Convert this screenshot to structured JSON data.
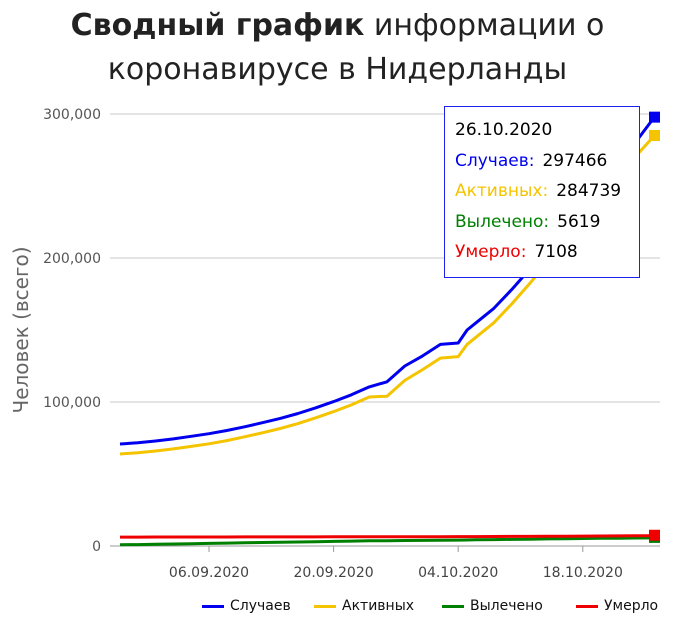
{
  "title": {
    "bold": "Сводный график",
    "line1_rest": "информации о",
    "line2": "коронавирусе в Нидерланды"
  },
  "tooltip": {
    "date": "26.10.2020",
    "rows": [
      {
        "label": "Случаев:",
        "value": "297466",
        "color": "#0000ee"
      },
      {
        "label": "Активных:",
        "value": "284739",
        "color": "#f5c400"
      },
      {
        "label": "Вылечено:",
        "value": "5619",
        "color": "#008000"
      },
      {
        "label": "Умерло:",
        "value": "7108",
        "color": "#ee0000"
      }
    ]
  },
  "chart_data": {
    "type": "line",
    "ylabel": "Человек (всего)",
    "ylim": [
      0,
      300000
    ],
    "yticks": [
      "0",
      "100,000",
      "200,000",
      "300,000"
    ],
    "xticks": [
      "06.09.2020",
      "20.09.2020",
      "04.10.2020",
      "18.10.2020"
    ],
    "x": [
      "2020-08-27",
      "2020-08-29",
      "2020-08-31",
      "2020-09-02",
      "2020-09-04",
      "2020-09-06",
      "2020-09-08",
      "2020-09-10",
      "2020-09-12",
      "2020-09-14",
      "2020-09-16",
      "2020-09-18",
      "2020-09-20",
      "2020-09-22",
      "2020-09-24",
      "2020-09-26",
      "2020-09-28",
      "2020-09-30",
      "2020-10-02",
      "2020-10-04",
      "2020-10-05",
      "2020-10-06",
      "2020-10-08",
      "2020-10-10",
      "2020-10-12",
      "2020-10-14",
      "2020-10-16",
      "2020-10-18",
      "2020-10-20",
      "2020-10-22",
      "2020-10-24",
      "2020-10-26"
    ],
    "series": [
      {
        "name": "Случаев",
        "color": "#0000ee",
        "values": [
          70800,
          71700,
          72900,
          74400,
          76200,
          78000,
          80200,
          82800,
          85600,
          88600,
          92000,
          96000,
          100300,
          105000,
          110500,
          114000,
          125000,
          132000,
          140000,
          141000,
          150000,
          155000,
          165000,
          178000,
          192000,
          207000,
          223000,
          238000,
          252000,
          266000,
          281000,
          297466
        ]
      },
      {
        "name": "Активных",
        "color": "#f5c400",
        "values": [
          63900,
          64800,
          66000,
          67400,
          69200,
          71000,
          73200,
          75800,
          78600,
          81600,
          85000,
          89000,
          93300,
          98000,
          103500,
          104000,
          115000,
          122500,
          130500,
          131500,
          140000,
          145000,
          155000,
          168000,
          182000,
          197000,
          213000,
          228000,
          242000,
          256000,
          271000,
          284739
        ]
      },
      {
        "name": "Вылечено",
        "color": "#008000",
        "values": [
          900,
          1000,
          1200,
          1400,
          1600,
          1800,
          2000,
          2200,
          2400,
          2600,
          2800,
          3000,
          3200,
          3400,
          3600,
          3700,
          3800,
          3900,
          4000,
          4100,
          4200,
          4300,
          4450,
          4600,
          4750,
          4900,
          5050,
          5200,
          5330,
          5440,
          5530,
          5619
        ]
      },
      {
        "name": "Умерло",
        "color": "#ee0000",
        "values": [
          6200,
          6210,
          6220,
          6230,
          6245,
          6260,
          6275,
          6290,
          6305,
          6320,
          6335,
          6350,
          6370,
          6390,
          6410,
          6430,
          6450,
          6470,
          6490,
          6510,
          6530,
          6560,
          6600,
          6650,
          6700,
          6760,
          6820,
          6880,
          6940,
          7000,
          7050,
          7108
        ]
      }
    ],
    "legend_position": "bottom",
    "grid": true
  },
  "legend": [
    {
      "label": "Случаев",
      "color": "#0000ee"
    },
    {
      "label": "Активных",
      "color": "#f5c400"
    },
    {
      "label": "Вылечено",
      "color": "#008000"
    },
    {
      "label": "Умерло",
      "color": "#ee0000"
    }
  ]
}
